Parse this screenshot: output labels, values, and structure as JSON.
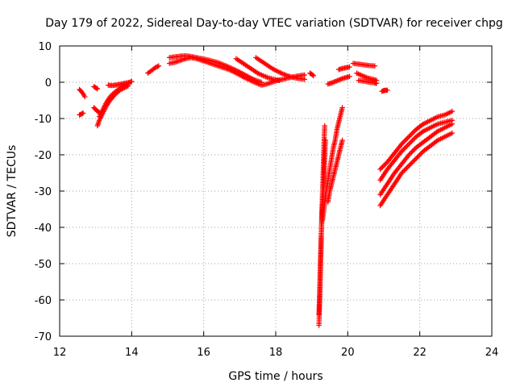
{
  "chart_data": {
    "type": "scatter",
    "title": "Day 179 of 2022, Sidereal Day-to-day VTEC variation (SDTVAR) for receiver chpg",
    "xlabel": "GPS time / hours",
    "ylabel": "SDTVAR / TECUs",
    "xlim": [
      12,
      24
    ],
    "ylim": [
      -70,
      10
    ],
    "xticks": [
      12,
      14,
      16,
      18,
      20,
      22,
      24
    ],
    "yticks": [
      10,
      0,
      -10,
      -20,
      -30,
      -40,
      -50,
      -60,
      -70
    ],
    "grid": true,
    "marker": "+",
    "color": "#ff0000",
    "series": [
      {
        "name": "seg-a",
        "x": [
          12.55,
          12.6,
          12.65,
          12.7
        ],
        "y": [
          -2,
          -2.5,
          -3.2,
          -4
        ]
      },
      {
        "name": "seg-b",
        "x": [
          12.55,
          12.6,
          12.65
        ],
        "y": [
          -9,
          -8.8,
          -8.5
        ]
      },
      {
        "name": "seg-c",
        "x": [
          12.95,
          13.0,
          13.05
        ],
        "y": [
          -1.2,
          -1.5,
          -1.8
        ]
      },
      {
        "name": "seg-d",
        "x": [
          12.95,
          13.0,
          13.05,
          13.1
        ],
        "y": [
          -7,
          -7.5,
          -8,
          -8.3
        ]
      },
      {
        "name": "seg-e",
        "x": [
          13.05,
          13.1,
          13.2,
          13.3,
          13.4,
          13.5,
          13.6,
          13.7,
          13.8,
          13.9
        ],
        "y": [
          -12,
          -10.5,
          -8.5,
          -6.5,
          -5,
          -3.8,
          -2.8,
          -2,
          -1.5,
          -1
        ]
      },
      {
        "name": "seg-f",
        "x": [
          13.1,
          13.2,
          13.3,
          13.4,
          13.5,
          13.6,
          13.7,
          13.8,
          13.9
        ],
        "y": [
          -9.5,
          -7.5,
          -5.5,
          -4,
          -3,
          -2.2,
          -1.5,
          -1,
          -0.5
        ]
      },
      {
        "name": "seg-g",
        "x": [
          13.35,
          13.45,
          13.55,
          13.65,
          13.75,
          13.85,
          13.95,
          14.0
        ],
        "y": [
          -0.8,
          -0.9,
          -0.8,
          -0.6,
          -0.4,
          -0.2,
          0.0,
          0.2
        ]
      },
      {
        "name": "seg-h",
        "x": [
          14.45,
          14.55,
          14.65,
          14.75
        ],
        "y": [
          2.5,
          3.2,
          4.0,
          4.5
        ]
      },
      {
        "name": "seg-i",
        "x": [
          15.05,
          15.2,
          15.35,
          15.5,
          15.65,
          15.8,
          15.95,
          16.1,
          16.25,
          16.4,
          16.55,
          16.7,
          16.85,
          17.0,
          17.15,
          17.3,
          17.45,
          17.6,
          17.75,
          17.9,
          18.05,
          18.2,
          18.35,
          18.5,
          18.65,
          18.8
        ],
        "y": [
          5.2,
          5.5,
          6.0,
          6.5,
          6.8,
          6.5,
          6.0,
          5.5,
          5.0,
          4.5,
          4.0,
          3.5,
          2.8,
          2.0,
          1.2,
          0.5,
          -0.2,
          -0.8,
          -0.5,
          0.0,
          0.5,
          0.8,
          1.2,
          1.5,
          1.8,
          2.0
        ]
      },
      {
        "name": "seg-j",
        "x": [
          15.05,
          15.2,
          15.35,
          15.5,
          15.65,
          15.8,
          15.95,
          16.1,
          16.25,
          16.4,
          16.55,
          16.7,
          16.85,
          17.0,
          17.15,
          17.3,
          17.45,
          17.6
        ],
        "y": [
          6.8,
          7.0,
          7.2,
          7.3,
          7.1,
          6.8,
          6.5,
          6.2,
          5.8,
          5.4,
          4.8,
          4.2,
          3.5,
          2.8,
          2.0,
          1.2,
          0.5,
          0.0
        ]
      },
      {
        "name": "seg-k",
        "x": [
          16.9,
          17.05,
          17.2,
          17.35,
          17.5,
          17.65,
          17.8,
          17.95,
          18.1
        ],
        "y": [
          6.5,
          5.5,
          4.5,
          3.5,
          2.5,
          1.8,
          1.2,
          0.8,
          0.5
        ]
      },
      {
        "name": "seg-l",
        "x": [
          17.45,
          17.6,
          17.75,
          17.9,
          18.05,
          18.2,
          18.35,
          18.5,
          18.65,
          18.8
        ],
        "y": [
          6.8,
          5.8,
          4.8,
          3.8,
          3.0,
          2.3,
          1.7,
          1.3,
          1.0,
          0.8
        ]
      },
      {
        "name": "seg-m",
        "x": [
          18.95,
          19.0,
          19.05
        ],
        "y": [
          2.5,
          2.2,
          1.8
        ]
      },
      {
        "name": "seg-n",
        "x": [
          19.2,
          19.22,
          19.24,
          19.26,
          19.28,
          19.3,
          19.32,
          19.34,
          19.36
        ],
        "y": [
          -67,
          -60,
          -52,
          -45,
          -36,
          -30,
          -24,
          -17,
          -12
        ]
      },
      {
        "name": "seg-o",
        "x": [
          19.2,
          19.22,
          19.24,
          19.26,
          19.28,
          19.3,
          19.32,
          19.34,
          19.36,
          19.38
        ],
        "y": [
          -64,
          -58,
          -50,
          -43,
          -38,
          -34,
          -30,
          -26,
          -21,
          -16
        ]
      },
      {
        "name": "seg-p",
        "x": [
          19.3,
          19.35,
          19.4,
          19.45,
          19.5,
          19.55,
          19.6,
          19.65,
          19.7,
          19.75,
          19.8,
          19.85
        ],
        "y": [
          -38,
          -34,
          -30,
          -27,
          -24,
          -21,
          -18,
          -16,
          -13,
          -11,
          -9,
          -7
        ]
      },
      {
        "name": "seg-q",
        "x": [
          19.45,
          19.5,
          19.55,
          19.6,
          19.65,
          19.7,
          19.75,
          19.8,
          19.85
        ],
        "y": [
          -33,
          -30,
          -28,
          -26,
          -24,
          -22,
          -20,
          -18,
          -16
        ]
      },
      {
        "name": "seg-r",
        "x": [
          19.45,
          19.55,
          19.65,
          19.75,
          19.85,
          19.95,
          20.05
        ],
        "y": [
          -0.5,
          -0.2,
          0.2,
          0.6,
          1.0,
          1.3,
          1.6
        ]
      },
      {
        "name": "seg-s",
        "x": [
          19.75,
          19.85,
          19.95,
          20.05
        ],
        "y": [
          3.5,
          3.8,
          4.0,
          4.2
        ]
      },
      {
        "name": "seg-t",
        "x": [
          20.15,
          20.3,
          20.45,
          20.6,
          20.75
        ],
        "y": [
          5.2,
          5.0,
          4.8,
          4.6,
          4.5
        ]
      },
      {
        "name": "seg-u",
        "x": [
          20.25,
          20.4,
          20.55,
          20.7,
          20.8
        ],
        "y": [
          2.5,
          1.8,
          1.2,
          0.8,
          0.5
        ]
      },
      {
        "name": "seg-v",
        "x": [
          20.3,
          20.45,
          20.6,
          20.75,
          20.8
        ],
        "y": [
          0.5,
          0.3,
          0.0,
          -0.2,
          -0.3
        ]
      },
      {
        "name": "seg-w",
        "x": [
          20.95,
          21.0,
          21.05,
          21.1
        ],
        "y": [
          -2.5,
          -2.3,
          -2.2,
          -2.2
        ]
      },
      {
        "name": "seg-x",
        "x": [
          20.9,
          21.1,
          21.3,
          21.5,
          21.7,
          21.9,
          22.1,
          22.3,
          22.5,
          22.7,
          22.9
        ],
        "y": [
          -34,
          -31,
          -28,
          -25,
          -23,
          -21,
          -19,
          -17.5,
          -16,
          -15,
          -14
        ]
      },
      {
        "name": "seg-y",
        "x": [
          20.9,
          21.1,
          21.3,
          21.5,
          21.7,
          21.9,
          22.1,
          22.3,
          22.5,
          22.7,
          22.9
        ],
        "y": [
          -31,
          -28,
          -25,
          -22.5,
          -20,
          -18,
          -16.5,
          -15,
          -13.5,
          -12.5,
          -11.5
        ]
      },
      {
        "name": "seg-z",
        "x": [
          20.9,
          21.1,
          21.3,
          21.5,
          21.7,
          21.9,
          22.1,
          22.3,
          22.5,
          22.7,
          22.9
        ],
        "y": [
          -27,
          -24,
          -21.5,
          -19,
          -17,
          -15,
          -13.5,
          -12.5,
          -11.5,
          -11,
          -10.5
        ]
      },
      {
        "name": "seg-aa",
        "x": [
          20.9,
          21.1,
          21.3,
          21.5,
          21.7,
          21.9,
          22.1,
          22.3,
          22.5,
          22.7,
          22.9
        ],
        "y": [
          -24,
          -22,
          -19.5,
          -17,
          -15,
          -13,
          -11.5,
          -10.5,
          -9.5,
          -9,
          -8
        ]
      }
    ]
  }
}
